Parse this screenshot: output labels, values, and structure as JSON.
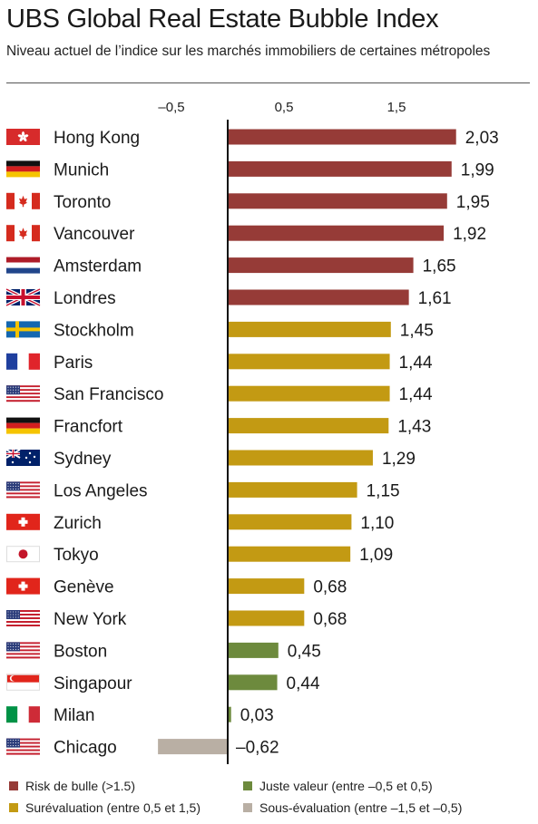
{
  "title": "UBS Global Real Estate Bubble Index",
  "subtitle": "Niveau actuel de l’indice sur les marchés immobiliers de certaines métropoles",
  "colors": {
    "bubble": "#963b37",
    "overvalued": "#c39a13",
    "fair": "#6d8a3d",
    "undervalued": "#b9afa4"
  },
  "legend": [
    {
      "key": "bubble",
      "label": "Risk de bulle (>1.5)"
    },
    {
      "key": "fair",
      "label": "Juste valeur (entre –0,5 et 0,5)"
    },
    {
      "key": "overvalued",
      "label": "Surévaluation (entre 0,5 et 1,5)"
    },
    {
      "key": "undervalued",
      "label": "Sous-évaluation (entre –1,5 et –0,5)"
    }
  ],
  "chart_data": {
    "type": "bar",
    "orientation": "horizontal",
    "title": "UBS Global Real Estate Bubble Index",
    "subtitle": "Niveau actuel de l’indice sur les marchés immobiliers de certaines métropoles",
    "xlim": [
      -0.62,
      2.03
    ],
    "xticks": [
      -0.5,
      0.5,
      1.5
    ],
    "xtick_labels": [
      "–0,5",
      "0,5",
      "1,5"
    ],
    "grid": false,
    "categories": [
      "Hong Kong",
      "Munich",
      "Toronto",
      "Vancouver",
      "Amsterdam",
      "Londres",
      "Stockholm",
      "Paris",
      "San Francisco",
      "Francfort",
      "Sydney",
      "Los Angeles",
      "Zurich",
      "Tokyo",
      "Genève",
      "New York",
      "Boston",
      "Singapour",
      "Milan",
      "Chicago"
    ],
    "values": [
      2.03,
      1.99,
      1.95,
      1.92,
      1.65,
      1.61,
      1.45,
      1.44,
      1.44,
      1.43,
      1.29,
      1.15,
      1.1,
      1.09,
      0.68,
      0.68,
      0.45,
      0.44,
      0.03,
      -0.62
    ],
    "value_labels": [
      "2,03",
      "1,99",
      "1,95",
      "1,92",
      "1,65",
      "1,61",
      "1,45",
      "1,44",
      "1,44",
      "1,43",
      "1,29",
      "1,15",
      "1,10",
      "1,09",
      "0,68",
      "0,68",
      "0,45",
      "0,44",
      "0,03",
      "–0,62"
    ],
    "classes": [
      "bubble",
      "bubble",
      "bubble",
      "bubble",
      "bubble",
      "bubble",
      "overvalued",
      "overvalued",
      "overvalued",
      "overvalued",
      "overvalued",
      "overvalued",
      "overvalued",
      "overvalued",
      "overvalued",
      "overvalued",
      "fair",
      "fair",
      "fair",
      "undervalued"
    ],
    "flags": [
      "hk",
      "de",
      "ca",
      "ca",
      "nl",
      "gb",
      "se",
      "fr",
      "us",
      "de",
      "au",
      "us",
      "ch",
      "jp",
      "ch",
      "us",
      "us",
      "sg",
      "it",
      "us"
    ]
  }
}
